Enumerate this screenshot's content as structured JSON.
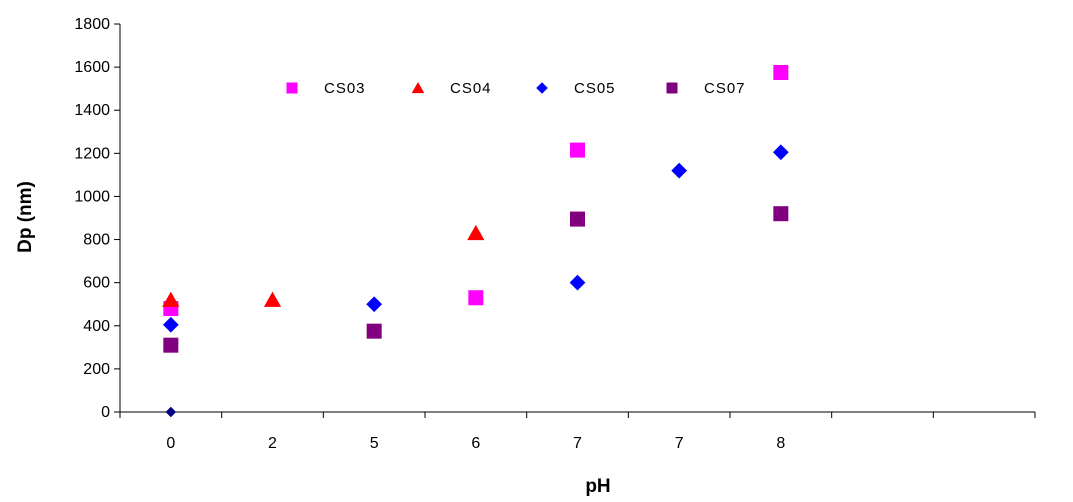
{
  "chart_data": {
    "type": "scatter",
    "title": "",
    "xlabel": "pH",
    "ylabel": "Dp (nm)",
    "categories": [
      "0",
      "2",
      "5",
      "6",
      "7",
      "7",
      "8"
    ],
    "category_slots": 9,
    "ylim": [
      0,
      1800
    ],
    "yticks": [
      0,
      200,
      400,
      600,
      800,
      1000,
      1200,
      1400,
      1600,
      1800
    ],
    "grid": false,
    "legend_position": "top-center",
    "series": [
      {
        "name": "CS03",
        "marker": "square",
        "color": "#FF00FF",
        "points": [
          {
            "category_index": 0,
            "y": 480
          },
          {
            "category_index": 3,
            "y": 530
          },
          {
            "category_index": 4,
            "y": 1215
          },
          {
            "category_index": 6,
            "y": 1575
          }
        ]
      },
      {
        "name": "CS04",
        "marker": "triangle",
        "color": "#FF0000",
        "points": [
          {
            "category_index": 0,
            "y": 520
          },
          {
            "category_index": 1,
            "y": 520
          },
          {
            "category_index": 3,
            "y": 830
          }
        ]
      },
      {
        "name": "CS05",
        "marker": "diamond",
        "color": "#0000FF",
        "points": [
          {
            "category_index": 0,
            "y": 405
          },
          {
            "category_index": 2,
            "y": 500
          },
          {
            "category_index": 4,
            "y": 600
          },
          {
            "category_index": 5,
            "y": 1120
          },
          {
            "category_index": 6,
            "y": 1205
          }
        ]
      },
      {
        "name": "CS07",
        "marker": "square",
        "color": "#800080",
        "points": [
          {
            "category_index": 0,
            "y": 310
          },
          {
            "category_index": 2,
            "y": 375
          },
          {
            "category_index": 4,
            "y": 895
          },
          {
            "category_index": 6,
            "y": 920
          }
        ]
      }
    ],
    "extra_points": [
      {
        "category_index": 0,
        "y": 0,
        "marker": "diamond",
        "color": "#000080"
      }
    ]
  }
}
